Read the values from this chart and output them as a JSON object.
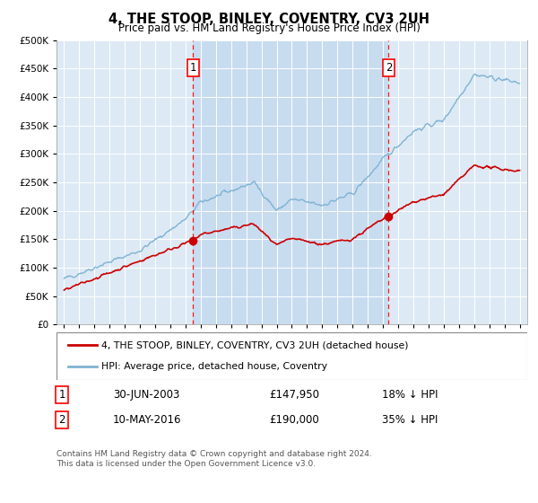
{
  "title": "4, THE STOOP, BINLEY, COVENTRY, CV3 2UH",
  "subtitle": "Price paid vs. HM Land Registry's House Price Index (HPI)",
  "ylim": [
    0,
    500000
  ],
  "yticks": [
    0,
    50000,
    100000,
    150000,
    200000,
    250000,
    300000,
    350000,
    400000,
    450000,
    500000
  ],
  "hpi_color": "#7fb3d3",
  "price_color": "#cc0000",
  "background_color": "#ddeaf5",
  "shade_color": "#c8dcf0",
  "sale1_year": 2003.5,
  "sale1_price": 147950,
  "sale2_year": 2016.37,
  "sale2_price": 190000,
  "legend_label_price": "4, THE STOOP, BINLEY, COVENTRY, CV3 2UH (detached house)",
  "legend_label_hpi": "HPI: Average price, detached house, Coventry",
  "annotation1_date": "30-JUN-2003",
  "annotation1_price": "£147,950",
  "annotation1_hpi": "18% ↓ HPI",
  "annotation2_date": "10-MAY-2016",
  "annotation2_price": "£190,000",
  "annotation2_hpi": "35% ↓ HPI",
  "footer": "Contains HM Land Registry data © Crown copyright and database right 2024.\nThis data is licensed under the Open Government Licence v3.0."
}
